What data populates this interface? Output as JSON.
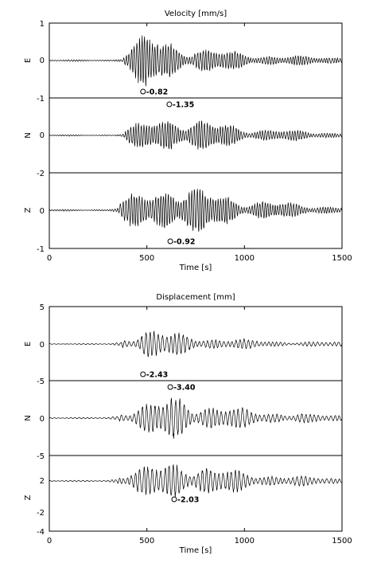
{
  "figures": [
    {
      "title": "Velocity [mm/s]",
      "xlabel": "Time [s]",
      "xticks": [
        "0",
        "500",
        "1000",
        "1500"
      ],
      "boundary_tick_labels": [
        "1",
        "-1",
        "-2",
        "-1"
      ],
      "panels": [
        {
          "label": "E",
          "zero_label": "0",
          "peak_label": "-0.82",
          "peak_time": 480,
          "peak_side": "bottom",
          "onset": 380,
          "amp_env": 0.82
        },
        {
          "label": "N",
          "zero_label": "0",
          "peak_label": "-1.35",
          "peak_time": 615,
          "peak_side": "top",
          "onset": 390,
          "amp_env": 1.35
        },
        {
          "label": "Z",
          "zero_label": "0",
          "peak_label": "-0.92",
          "peak_time": 620,
          "peak_side": "bottom",
          "onset": 360,
          "amp_env": 0.92
        }
      ]
    },
    {
      "title": "Displacement [mm]",
      "xlabel": "Time [s]",
      "xticks": [
        "0",
        "500",
        "1000",
        "1500"
      ],
      "boundary_tick_labels": [
        "5",
        "-5",
        "-5",
        "-4"
      ],
      "panels": [
        {
          "label": "E",
          "zero_label": "0",
          "peak_label": "-2.43",
          "peak_time": 480,
          "peak_side": "bottom",
          "onset": 370,
          "amp_env": 2.43
        },
        {
          "label": "N",
          "zero_label": "0",
          "peak_label": "-3.40",
          "peak_time": 620,
          "peak_side": "top",
          "onset": 360,
          "amp_env": 3.4
        },
        {
          "label": "Z",
          "zero_label": "2",
          "extra_labels": [
            "-2"
          ],
          "peak_label": "-2.03",
          "peak_time": 640,
          "peak_side": "bottom",
          "onset": 350,
          "amp_env": 2.03
        }
      ]
    }
  ],
  "chart_data": [
    {
      "type": "line",
      "title": "Velocity [mm/s]",
      "xlabel": "Time [s]",
      "xlim": [
        0,
        1500
      ],
      "series": [
        {
          "name": "E",
          "ylim": [
            -1,
            1
          ],
          "peak": {
            "time": 480,
            "value": -0.82
          }
        },
        {
          "name": "N",
          "ylim": [
            -2,
            2
          ],
          "peak": {
            "time": 615,
            "value": -1.35
          }
        },
        {
          "name": "Z",
          "ylim": [
            -1,
            1
          ],
          "peak": {
            "time": 620,
            "value": -0.92
          }
        }
      ]
    },
    {
      "type": "line",
      "title": "Displacement [mm]",
      "xlabel": "Time [s]",
      "xlim": [
        0,
        1500
      ],
      "series": [
        {
          "name": "E",
          "ylim": [
            -5,
            5
          ],
          "peak": {
            "time": 480,
            "value": -2.43
          }
        },
        {
          "name": "N",
          "ylim": [
            -5,
            5
          ],
          "peak": {
            "time": 620,
            "value": -3.4
          }
        },
        {
          "name": "Z",
          "ylim": [
            -4,
            4
          ],
          "peak": {
            "time": 640,
            "value": -2.03
          }
        }
      ]
    }
  ]
}
